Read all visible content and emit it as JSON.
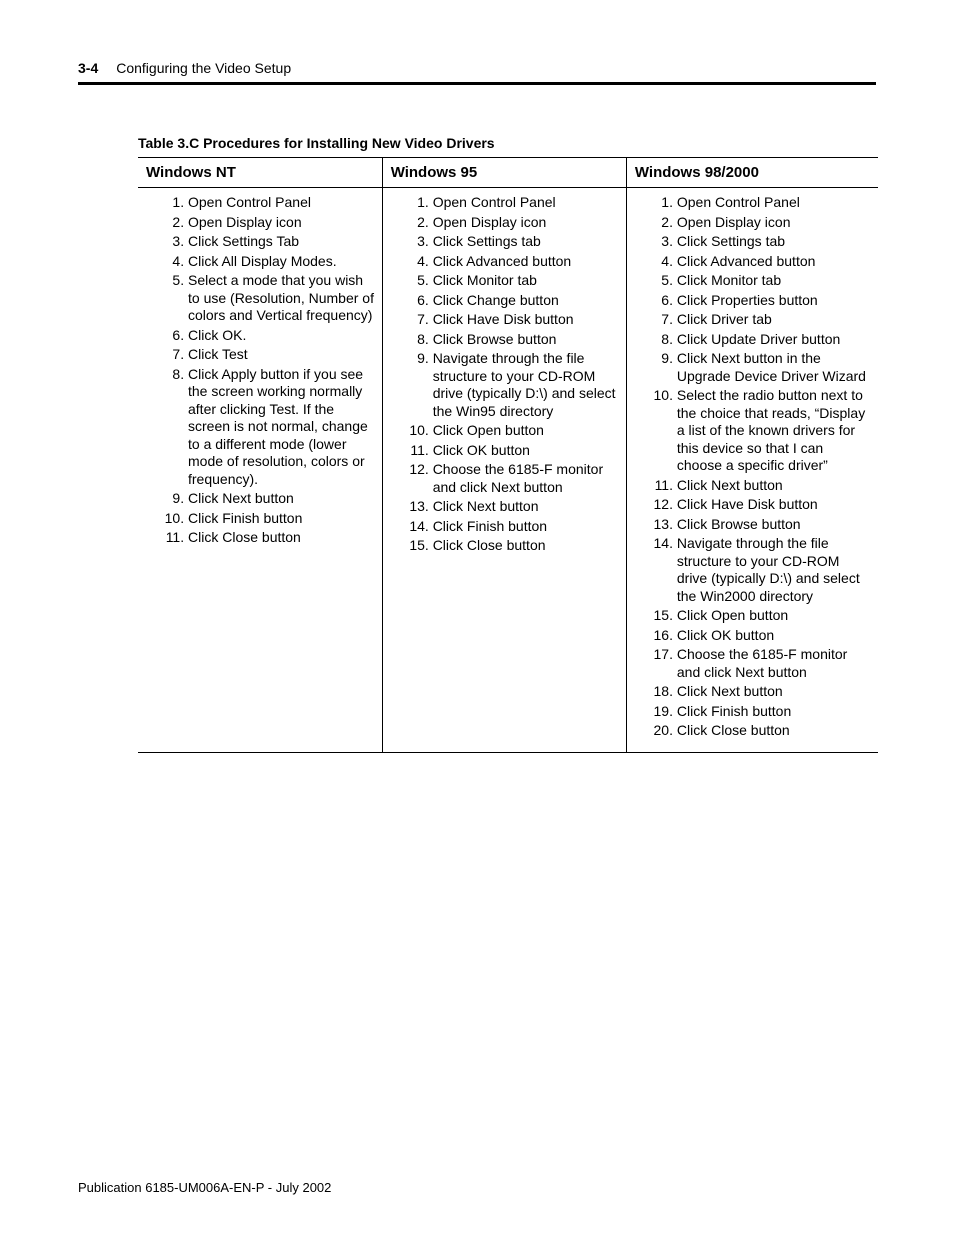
{
  "header": {
    "page_number": "3-4",
    "chapter_title": "Configuring the Video Setup"
  },
  "table": {
    "caption": "Table 3.C   Procedures for Installing New Video Drivers",
    "columns": [
      {
        "header": "Windows NT"
      },
      {
        "header": "Windows 95"
      },
      {
        "header": "Windows 98/2000"
      }
    ],
    "rows": {
      "nt": [
        "Open Control Panel",
        "Open Display icon",
        "Click Settings Tab",
        "Click All Display Modes.",
        "Select a mode that you wish to use (Resolution, Number of colors and Vertical frequency)",
        "Click OK.",
        "Click Test",
        "Click Apply button if you see the screen working normally after clicking Test. If the screen is not normal, change to a different mode (lower mode of resolution, colors or frequency).",
        "Click Next button",
        "Click Finish button",
        "Click Close button"
      ],
      "w95": [
        "Open Control Panel",
        "Open Display icon",
        "Click Settings tab",
        "Click Advanced button",
        "Click Monitor tab",
        "Click Change button",
        "Click Have Disk button",
        "Click Browse button",
        "Navigate through the file structure to your CD-ROM drive (typically D:\\) and select the Win95 directory",
        "Click Open button",
        "Click OK button",
        "Choose the 6185-F monitor and click Next button",
        "Click Next button",
        "Click Finish button",
        "Click Close button"
      ],
      "w98": [
        "Open Control Panel",
        "Open Display icon",
        "Click Settings tab",
        "Click Advanced button",
        "Click Monitor tab",
        "Click Properties button",
        "Click Driver tab",
        "Click Update Driver button",
        "Click Next button in the Upgrade Device Driver Wizard",
        "Select the radio button next to the choice that reads, “Display a list of the known drivers for this device so that I can choose a specific driver”",
        "Click Next button",
        "Click Have Disk button",
        "Click Browse button",
        "Navigate through the file structure to your CD-ROM drive (typically D:\\) and select the Win2000 directory",
        "Click Open button",
        "Click OK button",
        "Choose the 6185-F monitor and click Next button",
        "Click Next button",
        "Click Finish button",
        "Click Close button"
      ]
    }
  },
  "footer": {
    "publication": "Publication 6185-UM006A-EN-P - July 2002"
  }
}
